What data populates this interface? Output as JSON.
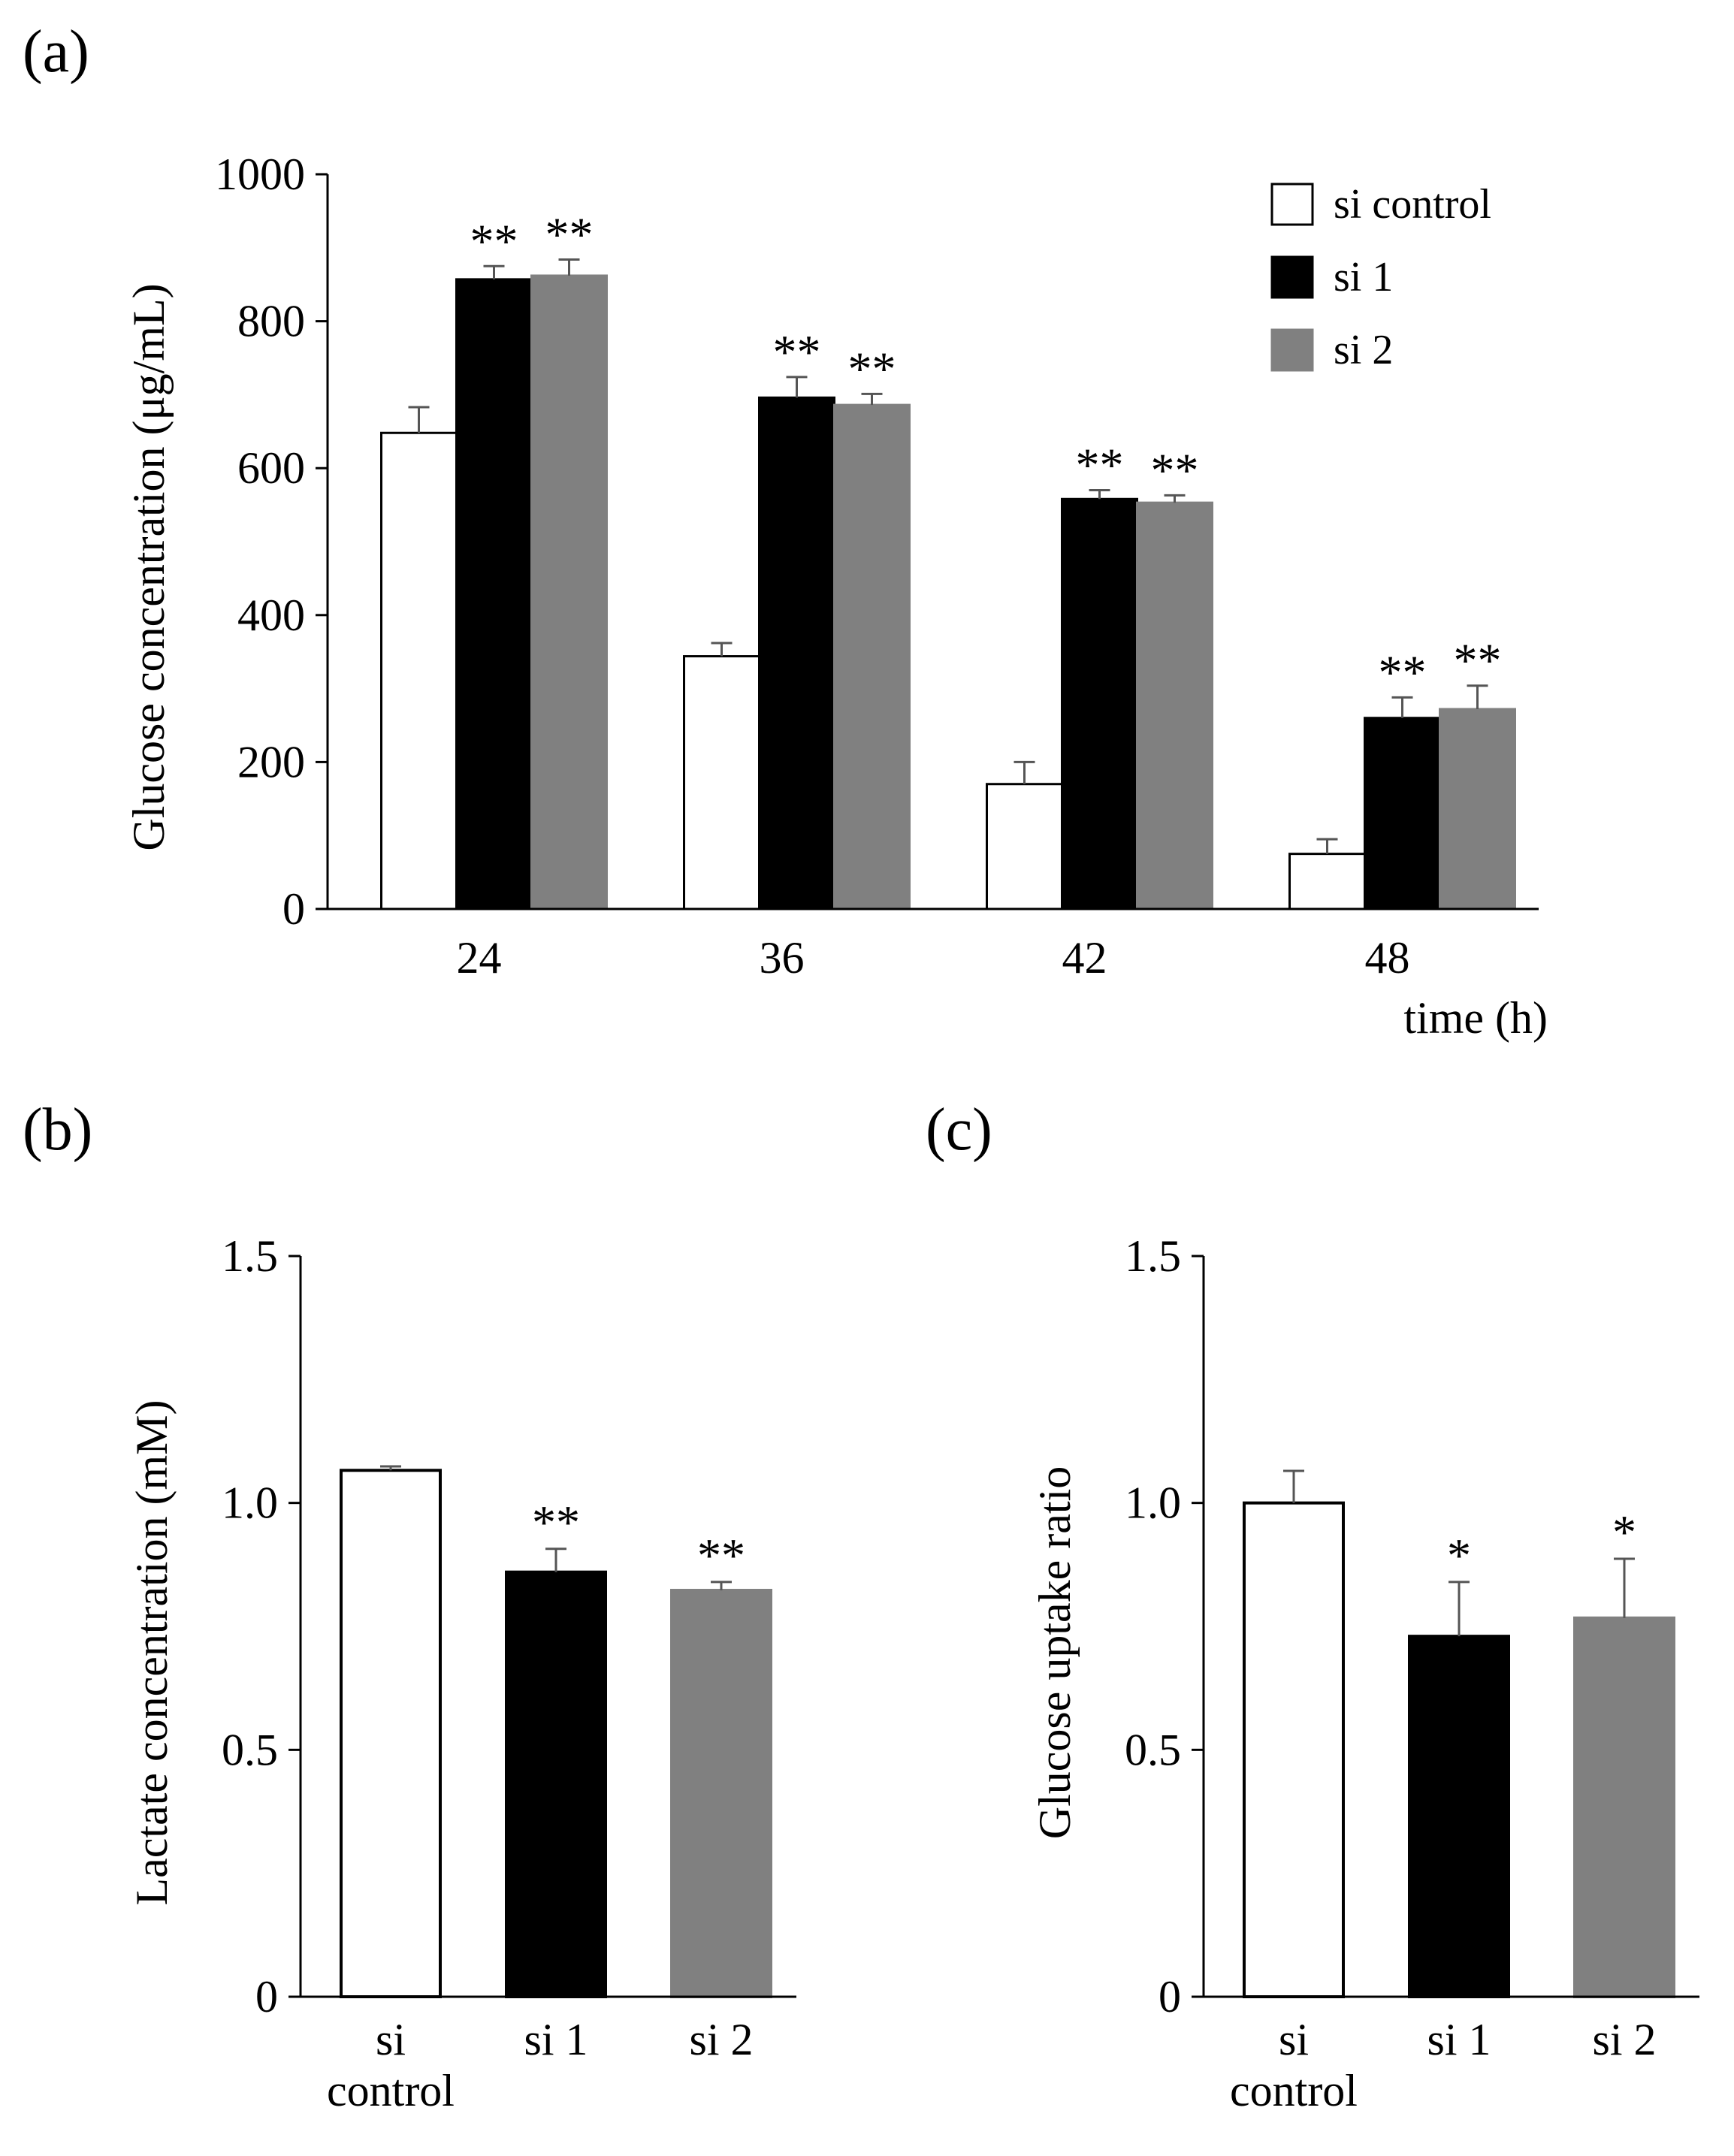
{
  "colors": {
    "si_control": "#ffffff",
    "si_1": "#000000",
    "si_2": "#808080",
    "error_bar": "#555555",
    "axis": "#000000"
  },
  "chart_data": [
    {
      "panel_label": "(a)",
      "type": "bar",
      "xlabel": "time (h)",
      "ylabel": "Glucose concentration (μg/mL)",
      "ylim": [
        0,
        1000
      ],
      "yticks": [
        "0",
        "200",
        "400",
        "600",
        "800",
        "1000"
      ],
      "categories": [
        "24",
        "36",
        "42",
        "48"
      ],
      "legend": {
        "placement": "top-right",
        "entries": [
          "si control",
          "si 1",
          "si 2"
        ]
      },
      "series": [
        {
          "name": "si control",
          "color": "#ffffff",
          "values": [
            648,
            344,
            170,
            75
          ],
          "errors": [
            35,
            18,
            30,
            20
          ],
          "significance": [
            "",
            "",
            "",
            ""
          ]
        },
        {
          "name": "si 1",
          "color": "#000000",
          "values": [
            857,
            696,
            558,
            260
          ],
          "errors": [
            18,
            28,
            12,
            28
          ],
          "significance": [
            "**",
            "**",
            "**",
            "**"
          ]
        },
        {
          "name": "si 2",
          "color": "#808080",
          "values": [
            862,
            686,
            553,
            272
          ],
          "errors": [
            22,
            15,
            10,
            32
          ],
          "significance": [
            "**",
            "**",
            "**",
            "**"
          ]
        }
      ],
      "grid": false
    },
    {
      "panel_label": "(b)",
      "type": "bar",
      "xlabel": "",
      "ylabel": "Lactate concentration (mM)",
      "ylim": [
        0,
        1.5
      ],
      "yticks": [
        "0",
        "0.5",
        "1.0",
        "1.5"
      ],
      "categories": [
        "si\ncontrol",
        "si 1",
        "si 2"
      ],
      "values": [
        1.066,
        0.86,
        0.823
      ],
      "errors": [
        0.008,
        0.047,
        0.017
      ],
      "colors": [
        "#ffffff",
        "#000000",
        "#808080"
      ],
      "significance": [
        "",
        "**",
        "**"
      ],
      "grid": false
    },
    {
      "panel_label": "(c)",
      "type": "bar",
      "xlabel": "",
      "ylabel": "Glucose uptake ratio",
      "ylim": [
        0,
        1.5
      ],
      "yticks": [
        "0",
        "0.5",
        "1.0",
        "1.5"
      ],
      "categories": [
        "si\ncontrol",
        "si 1",
        "si 2"
      ],
      "values": [
        1.0,
        0.73,
        0.767
      ],
      "errors": [
        0.065,
        0.11,
        0.12
      ],
      "colors": [
        "#ffffff",
        "#000000",
        "#808080"
      ],
      "significance": [
        "",
        "*",
        "*"
      ],
      "grid": false
    }
  ]
}
